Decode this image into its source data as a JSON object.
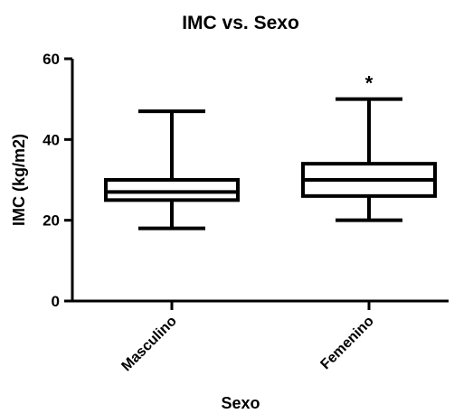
{
  "chart_data": {
    "type": "boxplot",
    "title": "IMC vs. Sexo",
    "xlabel": "Sexo",
    "ylabel": "IMC  (kg/m2)",
    "ylim": [
      0,
      60
    ],
    "yticks": [
      0,
      20,
      40,
      60
    ],
    "categories": [
      "Masculino",
      "Femenino"
    ],
    "boxes": [
      {
        "category": "Masculino",
        "min": 18,
        "q1": 25,
        "median": 27,
        "q3": 30,
        "max": 47,
        "annotation": ""
      },
      {
        "category": "Femenino",
        "min": 20,
        "q1": 26,
        "median": 30,
        "q3": 34,
        "max": 50,
        "annotation": "*"
      }
    ],
    "grid": false,
    "legend": "none"
  }
}
